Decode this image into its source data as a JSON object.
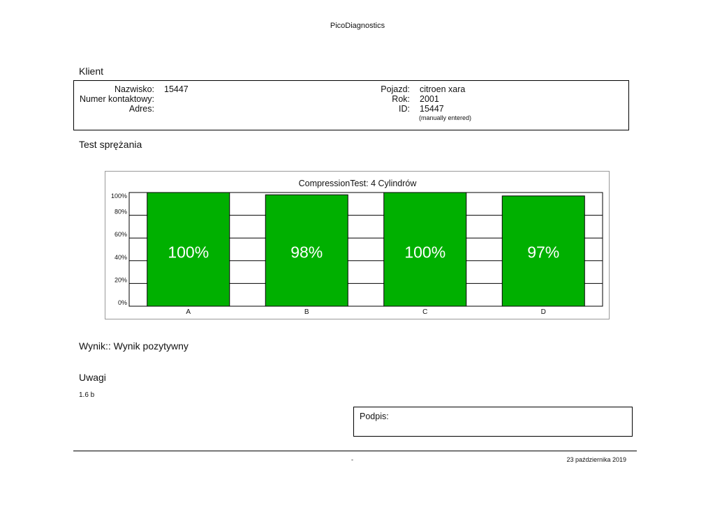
{
  "header": {
    "title": "PicoDiagnostics"
  },
  "client": {
    "section_title": "Klient",
    "name_label": "Nazwisko:",
    "name_value": "15447",
    "contact_label": "Numer kontaktowy:",
    "address_label": "Adres:",
    "vehicle_label": "Pojazd:",
    "vehicle_value": "citroen xara",
    "year_label": "Rok:",
    "year_value": "2001",
    "id_label": "ID:",
    "id_value": "15447",
    "id_note": "(manually entered)"
  },
  "test": {
    "section_title": "Test sprężania"
  },
  "chart_data": {
    "type": "bar",
    "title": "CompressionTest: 4 Cylindrów",
    "categories": [
      "A",
      "B",
      "C",
      "D"
    ],
    "values": [
      100,
      98,
      100,
      97
    ],
    "data_labels": [
      "100%",
      "98%",
      "100%",
      "97%"
    ],
    "ylim": [
      0,
      100
    ],
    "yticks": [
      0,
      20,
      40,
      60,
      80,
      100
    ],
    "ytick_labels": [
      "0%",
      "20%",
      "40%",
      "60%",
      "80%",
      "100%"
    ],
    "xlabel": "",
    "ylabel": "",
    "grid": true,
    "bar_color": "#00b000"
  },
  "result": {
    "text": "Wynik:: Wynik pozytywny"
  },
  "notes": {
    "section_title": "Uwagi",
    "text": "1.6 b"
  },
  "signature": {
    "label": "Podpis:"
  },
  "footer": {
    "center": "-",
    "date": "23 października 2019"
  }
}
